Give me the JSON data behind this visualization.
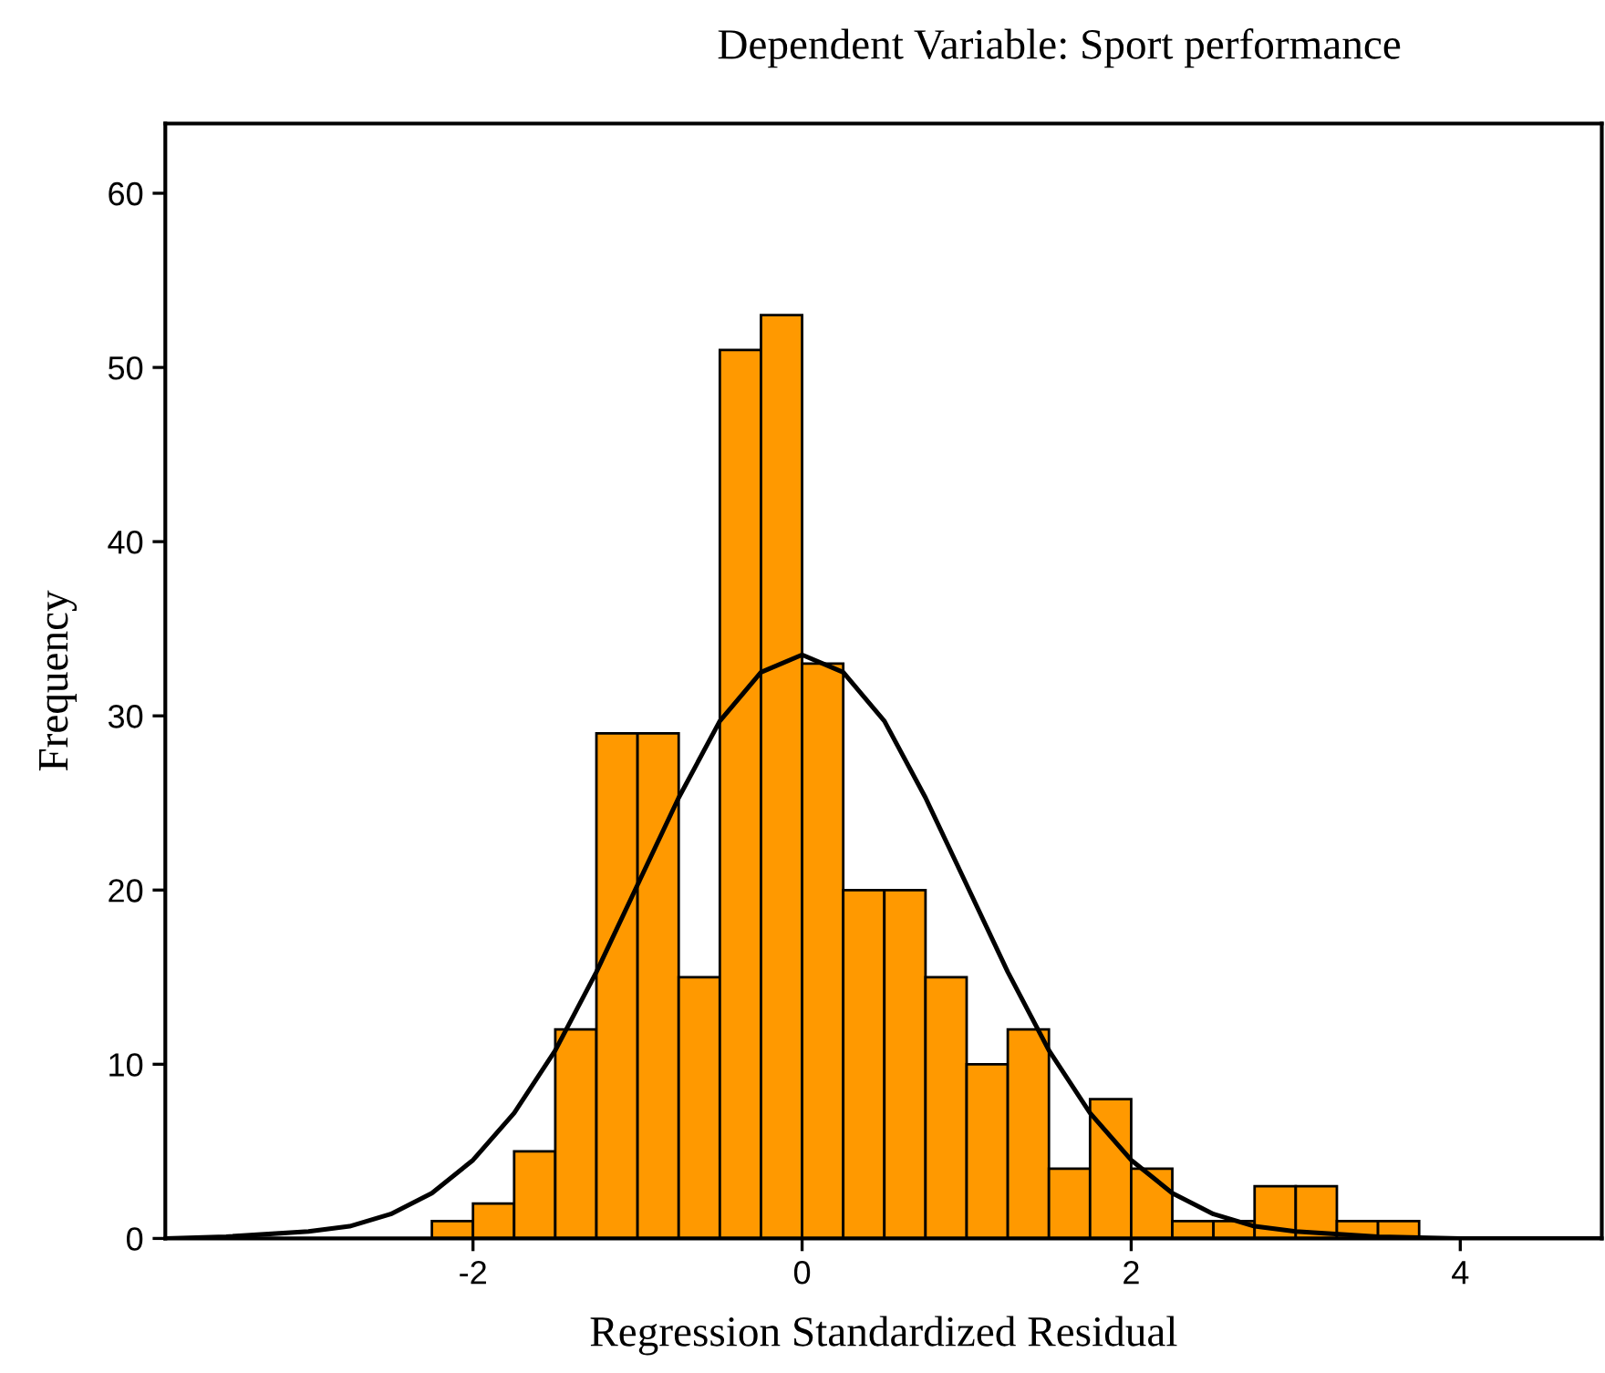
{
  "chart_data": {
    "type": "histogram",
    "title": "Dependent Variable: Sport performance",
    "xlabel": "Regression Standardized Residual",
    "ylabel": "Frequency",
    "bins": [
      -2.25,
      -2.0,
      -1.75,
      -1.5,
      -1.25,
      -1.0,
      -0.75,
      -0.5,
      -0.25,
      0.0,
      0.25,
      0.5,
      0.75,
      1.0,
      1.25,
      1.5,
      1.75,
      2.0,
      2.25,
      2.5,
      2.75,
      3.0,
      3.25,
      3.5,
      3.75
    ],
    "values": [
      1,
      2,
      5,
      12,
      29,
      29,
      15,
      51,
      53,
      33,
      20,
      20,
      15,
      10,
      12,
      4,
      8,
      4,
      1,
      1,
      3,
      3,
      1,
      1
    ],
    "color": "#ff9900",
    "series": [
      {
        "type": "line",
        "color": "#000000",
        "x": [
          -3.87,
          -3.5,
          -3.0,
          -2.75,
          -2.5,
          -2.25,
          -2.0,
          -1.75,
          -1.5,
          -1.25,
          -1.0,
          -0.75,
          -0.5,
          -0.25,
          0.0,
          0.25,
          0.5,
          0.75,
          1.0,
          1.25,
          1.5,
          1.75,
          2.0,
          2.25,
          2.5,
          2.75,
          3.0,
          3.5,
          4.0,
          4.86
        ],
        "values": [
          0.0,
          0.1,
          0.4,
          0.7,
          1.4,
          2.6,
          4.5,
          7.2,
          10.8,
          15.3,
          20.3,
          25.3,
          29.7,
          32.5,
          33.5,
          32.5,
          29.7,
          25.3,
          20.3,
          15.3,
          10.8,
          7.2,
          4.5,
          2.6,
          1.4,
          0.7,
          0.4,
          0.1,
          0.0,
          0.0
        ]
      }
    ],
    "xlim": [
      -3.87,
      4.86
    ],
    "ylim": [
      0,
      64
    ],
    "xticks": [
      -2,
      0,
      2,
      4
    ],
    "yticks": [
      0,
      10,
      20,
      30,
      40,
      50,
      60
    ],
    "grid": false,
    "legend": false
  }
}
